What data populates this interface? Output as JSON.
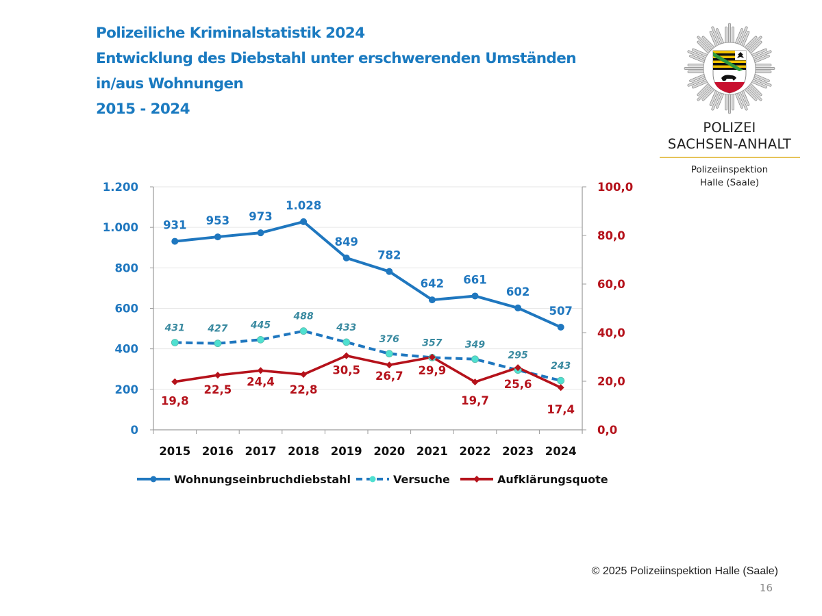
{
  "slide": {
    "title_lines": [
      "Polizeiliche Kriminalstatistik 2024",
      "Entwicklung des Diebstahl unter erschwerenden Umständen",
      "in/aus Wohnungen",
      "2015 - 2024"
    ],
    "logo": {
      "line1": "POLIZEI",
      "line2": "SACHSEN-ANHALT",
      "sub1": "Polizeiinspektion",
      "sub2": "Halle (Saale)"
    },
    "footer": "© 2025 Polizeiinspektion Halle (Saale)",
    "page_number": "16"
  },
  "colors": {
    "primary_blue": "#1f77bf",
    "versuche_marker": "#4fe0d0",
    "versuche_label": "#3a8aa0",
    "quote_red": "#b5121b",
    "title_blue": "#1a7ac0"
  },
  "chart_data": {
    "type": "line",
    "title": "",
    "categories": [
      "2015",
      "2016",
      "2017",
      "2018",
      "2019",
      "2020",
      "2021",
      "2022",
      "2023",
      "2024"
    ],
    "series": [
      {
        "name": "Wohnungseinbruchdiebstahl",
        "axis": "left",
        "style": "solid",
        "values": [
          931,
          953,
          973,
          1028,
          849,
          782,
          642,
          661,
          602,
          507
        ],
        "labels": [
          "931",
          "953",
          "973",
          "1.028",
          "849",
          "782",
          "642",
          "661",
          "602",
          "507"
        ]
      },
      {
        "name": "Versuche",
        "axis": "left",
        "style": "dashed",
        "values": [
          431,
          427,
          445,
          488,
          433,
          376,
          357,
          349,
          295,
          243
        ],
        "labels": [
          "431",
          "427",
          "445",
          "488",
          "433",
          "376",
          "357",
          "349",
          "295",
          "243"
        ]
      },
      {
        "name": "Aufklärungsquote",
        "axis": "right",
        "style": "solid",
        "values": [
          19.8,
          22.5,
          24.4,
          22.8,
          30.5,
          26.7,
          29.9,
          19.7,
          25.6,
          17.4
        ],
        "labels": [
          "19,8",
          "22,5",
          "24,4",
          "22,8",
          "30,5",
          "26,7",
          "29,9",
          "19,7",
          "25,6",
          "17,4"
        ]
      }
    ],
    "y_left": {
      "range": [
        0,
        1200
      ],
      "ticks": [
        0,
        200,
        400,
        600,
        800,
        1000,
        1200
      ],
      "tick_labels": [
        "0",
        "200",
        "400",
        "600",
        "800",
        "1.000",
        "1.200"
      ]
    },
    "y_right": {
      "range": [
        0,
        100
      ],
      "ticks": [
        0,
        20,
        40,
        60,
        80,
        100
      ],
      "tick_labels": [
        "0,0",
        "20,0",
        "40,0",
        "60,0",
        "80,0",
        "100,0"
      ]
    },
    "grid": true,
    "legend_position": "bottom"
  }
}
